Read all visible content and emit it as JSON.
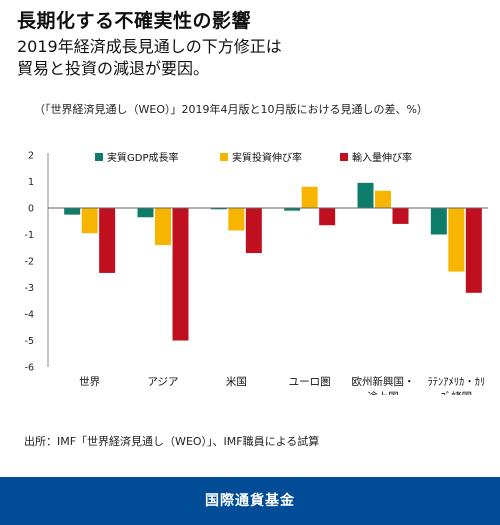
{
  "header": {
    "title": "長期化する不確実性の影響",
    "subtitle_line1": "2019年経済成長見通しの下方修正は",
    "subtitle_line2": "貿易と投資の減退が要因。"
  },
  "note": "（「世界経済見通し（WEO）」2019年4月版と10月版における見通しの差、%）",
  "source": "出所：IMF「世界経済見通し（WEO）」、IMF職員による試算",
  "footer": {
    "label": "国際通貨基金"
  },
  "colors": {
    "footer_bg": "#004c97",
    "growth": "#0e7c6b",
    "investment": "#f7b500",
    "imports": "#c00f1e"
  },
  "chart_data": {
    "type": "bar",
    "categories": [
      [
        "世界"
      ],
      [
        "アジア"
      ],
      [
        "米国"
      ],
      [
        "ユーロ圏"
      ],
      [
        "欧州新興国・",
        "途上国"
      ],
      [
        "ﾗﾃﾝｱﾒﾘｶ・ｶﾘ",
        "ﾌﾞ諸国"
      ]
    ],
    "series": [
      {
        "name": "実質GDP成長率",
        "color": "#0e7c6b",
        "values": [
          -0.25,
          -0.35,
          -0.05,
          -0.1,
          0.95,
          -1.0
        ]
      },
      {
        "name": "実質投資伸び率",
        "color": "#f7b500",
        "values": [
          -0.95,
          -1.4,
          -0.85,
          0.8,
          0.65,
          -2.4
        ]
      },
      {
        "name": "輸入量伸び率",
        "color": "#c00f1e",
        "values": [
          -2.45,
          -5.0,
          -1.7,
          -0.65,
          -0.6,
          -3.2
        ]
      }
    ],
    "yticks": [
      2,
      1,
      0,
      -1,
      -2,
      -3,
      -4,
      -5,
      -6
    ],
    "ylim": [
      -6,
      2
    ],
    "legend_position": "top",
    "grid": false
  }
}
